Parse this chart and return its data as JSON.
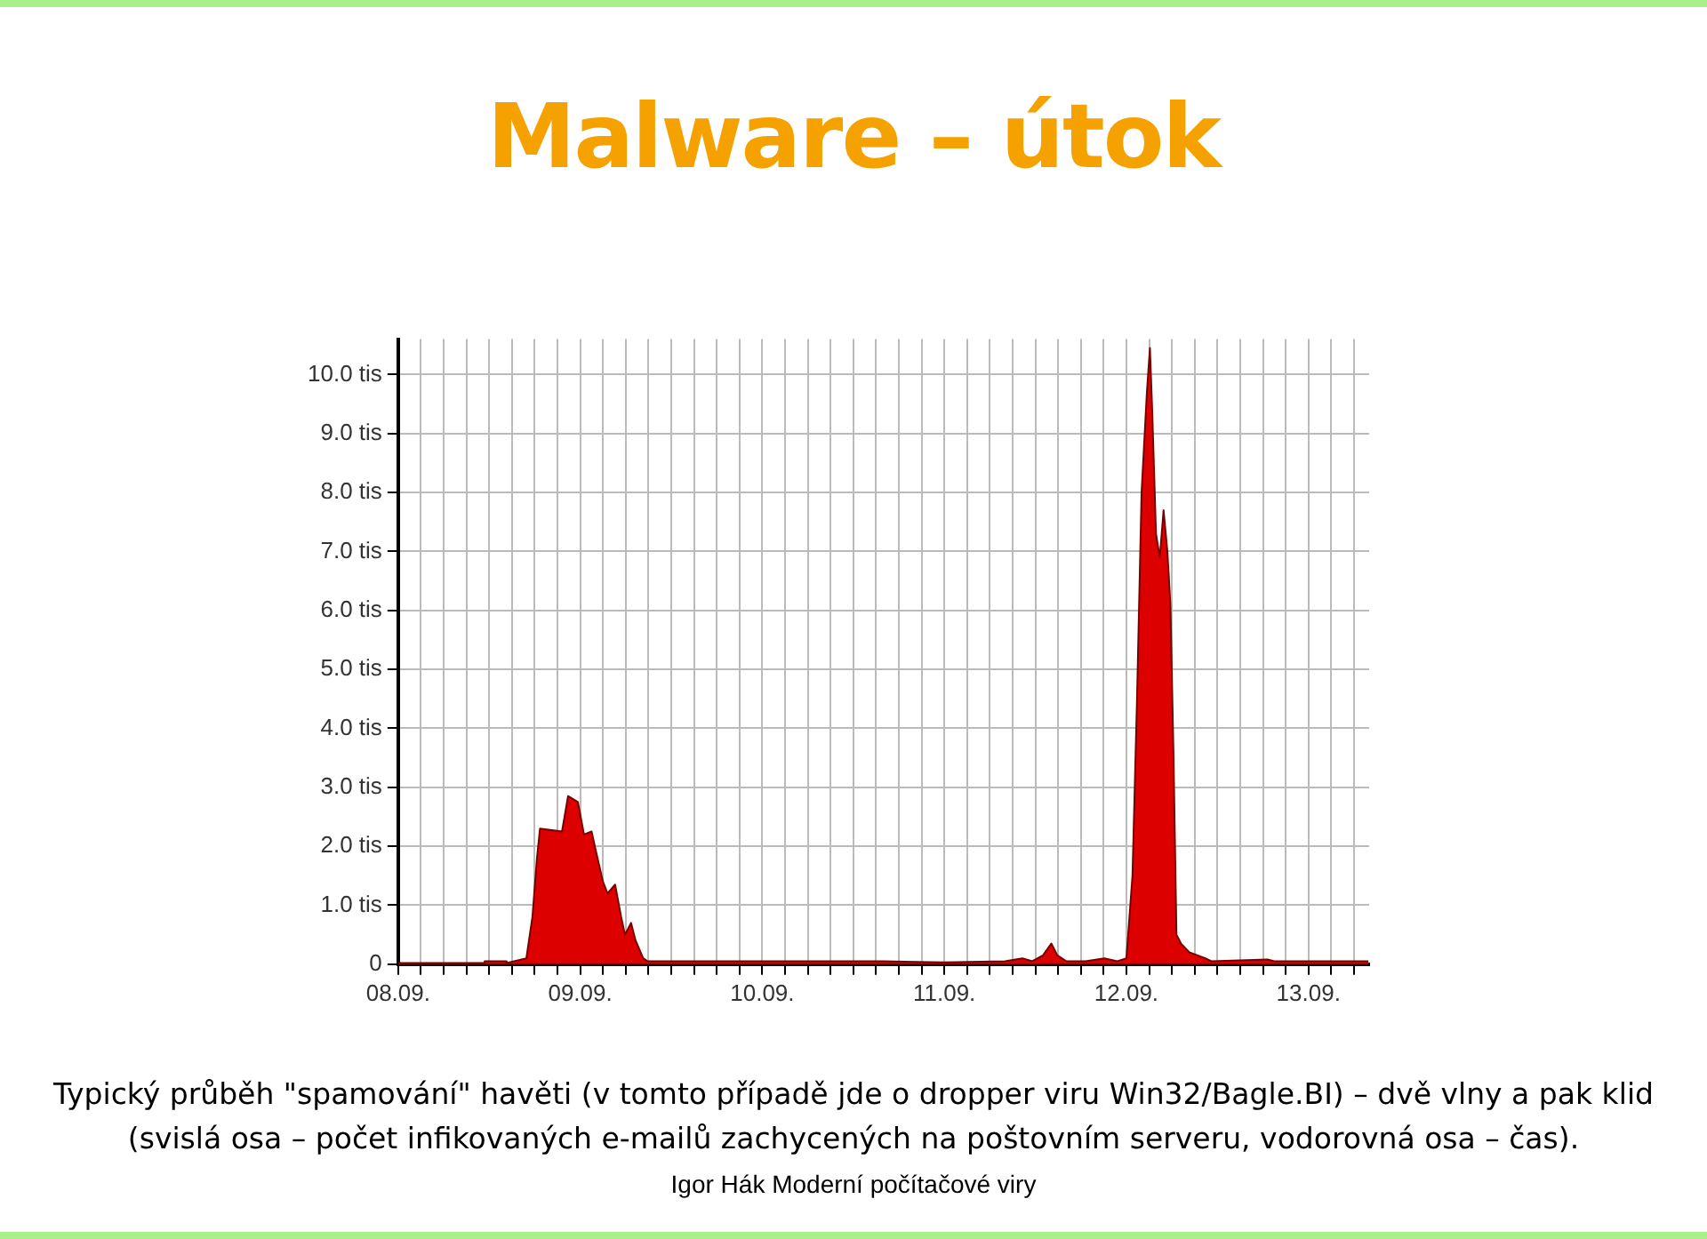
{
  "chart_data": {
    "type": "area",
    "title": "Malware – útok",
    "x": [
      "--09-08T00:00",
      "--09-08T11:18",
      "--09-08T11:24",
      "--09-08T14:12",
      "--09-08T14:18",
      "--09-08T16:54",
      "--09-08T17:42",
      "--09-08T18:18",
      "--09-08T18:42",
      "--09-08T21:36",
      "--09-08T22:24",
      "--09-08T23:42",
      "--09-09T00:30",
      "--09-09T01:30",
      "--09-09T02:06",
      "--09-09T03:00",
      "--09-09T03:36",
      "--09-09T04:36",
      "--09-09T05:24",
      "--09-09T05:54",
      "--09-09T06:42",
      "--09-09T07:18",
      "--09-09T08:18",
      "--09-09T08:54",
      "--09-09T16:00",
      "--09-10T00:00",
      "--09-10T08:00",
      "--09-10T16:00",
      "--09-11T00:00",
      "--09-11T08:00",
      "--09-11T10:18",
      "--09-11T11:36",
      "--09-11T13:00",
      "--09-11T14:06",
      "--09-11T14:54",
      "--09-11T16:06",
      "--09-11T18:36",
      "--09-11T21:06",
      "--09-11T22:48",
      "--09-12T00:00",
      "--09-12T00:48",
      "--09-12T01:24",
      "--09-12T02:00",
      "--09-12T02:42",
      "--09-12T03:06",
      "--09-12T03:24",
      "--09-12T03:54",
      "--09-12T04:24",
      "--09-12T04:54",
      "--09-12T05:24",
      "--09-12T05:48",
      "--09-12T06:12",
      "--09-12T06:36",
      "--09-12T07:12",
      "--09-12T08:18",
      "--09-12T10:24",
      "--09-12T11:12",
      "--09-12T18:36",
      "--09-12T19:30",
      "--09-13T07:54"
    ],
    "series": [
      {
        "color": "#dd0000",
        "values": [
          0.02,
          0.02,
          0.05,
          0.05,
          0.02,
          0.1,
          0.8,
          1.8,
          2.3,
          2.25,
          2.85,
          2.75,
          2.2,
          2.25,
          1.9,
          1.4,
          1.2,
          1.35,
          0.8,
          0.5,
          0.7,
          0.4,
          0.1,
          0.05,
          0.05,
          0.05,
          0.05,
          0.05,
          0.03,
          0.05,
          0.1,
          0.05,
          0.15,
          0.35,
          0.15,
          0.05,
          0.05,
          0.1,
          0.05,
          0.1,
          1.5,
          4.5,
          8.0,
          9.7,
          10.45,
          9.4,
          7.3,
          6.9,
          7.7,
          7.0,
          6.1,
          3.6,
          0.5,
          0.35,
          0.2,
          0.1,
          0.05,
          0.08,
          0.05,
          0.05
        ]
      }
    ],
    "xlim": [
      "--09-08T00:00",
      "--09-13T08:00"
    ],
    "xticks": [
      {
        "value": "--09-08T00:00",
        "label": "08.09."
      },
      {
        "value": "--09-08T03:00",
        "label": null
      },
      {
        "value": "--09-08T06:00",
        "label": null
      },
      {
        "value": "--09-08T09:00",
        "label": null
      },
      {
        "value": "--09-08T12:00",
        "label": null
      },
      {
        "value": "--09-08T15:00",
        "label": null
      },
      {
        "value": "--09-08T18:00",
        "label": null
      },
      {
        "value": "--09-08T21:00",
        "label": null
      },
      {
        "value": "--09-09T00:00",
        "label": "09.09."
      },
      {
        "value": "--09-09T03:00",
        "label": null
      },
      {
        "value": "--09-09T06:00",
        "label": null
      },
      {
        "value": "--09-09T09:00",
        "label": null
      },
      {
        "value": "--09-09T12:00",
        "label": null
      },
      {
        "value": "--09-09T15:00",
        "label": null
      },
      {
        "value": "--09-09T18:00",
        "label": null
      },
      {
        "value": "--09-09T21:00",
        "label": null
      },
      {
        "value": "--09-10T00:00",
        "label": "10.09."
      },
      {
        "value": "--09-10T03:00",
        "label": null
      },
      {
        "value": "--09-10T06:00",
        "label": null
      },
      {
        "value": "--09-10T09:00",
        "label": null
      },
      {
        "value": "--09-10T12:00",
        "label": null
      },
      {
        "value": "--09-10T15:00",
        "label": null
      },
      {
        "value": "--09-10T18:00",
        "label": null
      },
      {
        "value": "--09-10T21:00",
        "label": null
      },
      {
        "value": "--09-11T00:00",
        "label": "11.09."
      },
      {
        "value": "--09-11T03:00",
        "label": null
      },
      {
        "value": "--09-11T06:00",
        "label": null
      },
      {
        "value": "--09-11T09:00",
        "label": null
      },
      {
        "value": "--09-11T12:00",
        "label": null
      },
      {
        "value": "--09-11T15:00",
        "label": null
      },
      {
        "value": "--09-11T18:00",
        "label": null
      },
      {
        "value": "--09-11T21:00",
        "label": null
      },
      {
        "value": "--09-12T00:00",
        "label": "12.09."
      },
      {
        "value": "--09-12T03:00",
        "label": null
      },
      {
        "value": "--09-12T06:00",
        "label": null
      },
      {
        "value": "--09-12T09:00",
        "label": null
      },
      {
        "value": "--09-12T12:00",
        "label": null
      },
      {
        "value": "--09-12T15:00",
        "label": null
      },
      {
        "value": "--09-12T18:00",
        "label": null
      },
      {
        "value": "--09-12T21:00",
        "label": null
      },
      {
        "value": "--09-13T00:00",
        "label": "13.09."
      },
      {
        "value": "--09-13T03:00",
        "label": null
      },
      {
        "value": "--09-13T06:00",
        "label": null
      }
    ],
    "ylim": [
      0,
      10.6
    ],
    "yticks": [
      0,
      {
        "value": 1,
        "label": "1.0 tis"
      },
      {
        "value": 2,
        "label": "2.0 tis"
      },
      {
        "value": 3,
        "label": "3.0 tis"
      },
      {
        "value": 4,
        "label": "4.0 tis"
      },
      {
        "value": 5,
        "label": "5.0 tis"
      },
      {
        "value": 6,
        "label": "6.0 tis"
      },
      {
        "value": 7,
        "label": "7.0 tis"
      },
      {
        "value": 8,
        "label": "8.0 tis"
      },
      {
        "value": 9,
        "label": "9.0 tis"
      },
      {
        "value": 10,
        "label": "10.0 tis"
      }
    ],
    "grid": true,
    "legend": false,
    "marker": "none",
    "line_style": "solid",
    "annotations": [
      "Typický průběh \"spamování\" havěti (v tomto případě jde o dropper viru Win32/Bagle.BI) – dvě vlny a pak klid (svislá osa – počet infikovaných e-mailů zachycených na poštovním serveru, vodorovná osa – čas).",
      "Igor Hák  Moderní počítačové viry"
    ]
  }
}
